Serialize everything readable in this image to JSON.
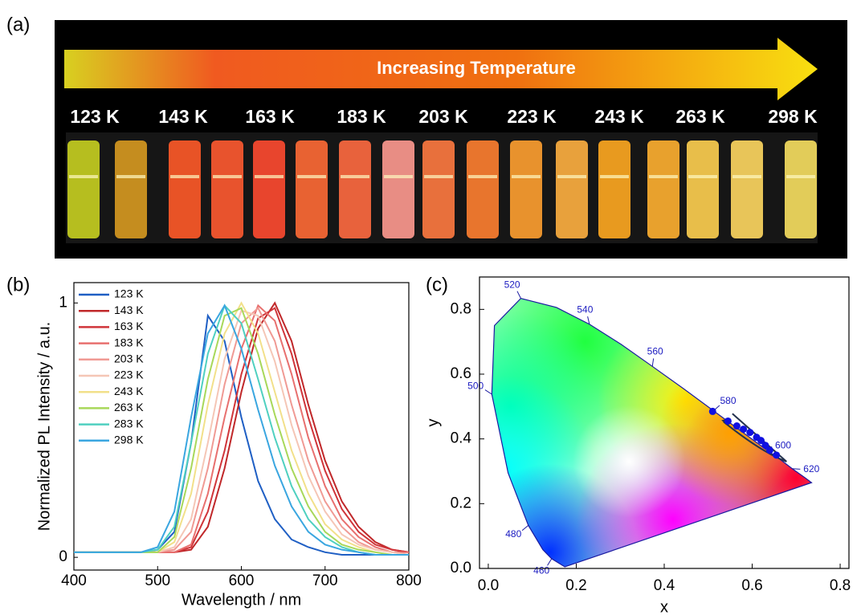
{
  "panel_labels": [
    "(a)",
    "(b)",
    "(c)"
  ],
  "photo_panel": {
    "arrow_text": "Increasing Temperature",
    "temperatures": [
      "123 K",
      "143 K",
      "163 K",
      "183 K",
      "203 K",
      "223 K",
      "243 K",
      "263 K",
      "298 K"
    ]
  },
  "chart_data": [
    {
      "type": "line",
      "xlabel": "Wavelength / nm",
      "ylabel": "Normalized PL Intensity / a.u.",
      "xlim": [
        400,
        800
      ],
      "ylim": [
        -0.05,
        1.08
      ],
      "xticks": [
        400,
        500,
        600,
        700,
        800
      ],
      "yticks": [
        0,
        1
      ],
      "legend": "upper-left",
      "x": [
        400,
        420,
        440,
        460,
        480,
        500,
        520,
        540,
        560,
        580,
        600,
        620,
        640,
        660,
        680,
        700,
        720,
        740,
        760,
        780,
        800
      ],
      "series": [
        {
          "name": "123 K",
          "color": "#1f5fc4",
          "values": [
            0.02,
            0.02,
            0.02,
            0.02,
            0.02,
            0.03,
            0.1,
            0.45,
            0.95,
            0.85,
            0.55,
            0.3,
            0.15,
            0.07,
            0.04,
            0.02,
            0.01,
            0.01,
            0.01,
            0.01,
            0.01
          ]
        },
        {
          "name": "143 K",
          "color": "#c0282a",
          "values": [
            0.02,
            0.02,
            0.02,
            0.02,
            0.02,
            0.02,
            0.02,
            0.03,
            0.12,
            0.35,
            0.65,
            0.9,
            1.0,
            0.85,
            0.6,
            0.38,
            0.22,
            0.12,
            0.06,
            0.03,
            0.02
          ]
        },
        {
          "name": "163 K",
          "color": "#d0353a",
          "values": [
            0.02,
            0.02,
            0.02,
            0.02,
            0.02,
            0.02,
            0.02,
            0.04,
            0.18,
            0.42,
            0.72,
            0.94,
            0.98,
            0.8,
            0.55,
            0.34,
            0.19,
            0.1,
            0.05,
            0.03,
            0.02
          ]
        },
        {
          "name": "183 K",
          "color": "#e8706f",
          "values": [
            0.02,
            0.02,
            0.02,
            0.02,
            0.02,
            0.02,
            0.02,
            0.05,
            0.25,
            0.55,
            0.82,
            0.99,
            0.93,
            0.72,
            0.47,
            0.28,
            0.15,
            0.08,
            0.04,
            0.02,
            0.02
          ]
        },
        {
          "name": "203 K",
          "color": "#f09a94",
          "values": [
            0.02,
            0.02,
            0.02,
            0.02,
            0.02,
            0.02,
            0.03,
            0.1,
            0.35,
            0.68,
            0.92,
            0.98,
            0.85,
            0.6,
            0.38,
            0.22,
            0.12,
            0.06,
            0.03,
            0.02,
            0.01
          ]
        },
        {
          "name": "223 K",
          "color": "#f5c6b6",
          "values": [
            0.02,
            0.02,
            0.02,
            0.02,
            0.02,
            0.02,
            0.04,
            0.15,
            0.45,
            0.78,
            0.97,
            0.95,
            0.77,
            0.52,
            0.32,
            0.18,
            0.09,
            0.05,
            0.03,
            0.02,
            0.01
          ]
        },
        {
          "name": "243 K",
          "color": "#f2e08a",
          "values": [
            0.02,
            0.02,
            0.02,
            0.02,
            0.02,
            0.02,
            0.06,
            0.25,
            0.6,
            0.88,
            1.0,
            0.88,
            0.65,
            0.42,
            0.25,
            0.13,
            0.07,
            0.04,
            0.02,
            0.01,
            0.01
          ]
        },
        {
          "name": "263 K",
          "color": "#a8d85a",
          "values": [
            0.02,
            0.02,
            0.02,
            0.02,
            0.02,
            0.02,
            0.08,
            0.35,
            0.7,
            0.95,
            0.98,
            0.8,
            0.56,
            0.35,
            0.2,
            0.1,
            0.05,
            0.03,
            0.02,
            0.01,
            0.01
          ]
        },
        {
          "name": "283 K",
          "color": "#4fd0c0",
          "values": [
            0.02,
            0.02,
            0.02,
            0.02,
            0.02,
            0.03,
            0.12,
            0.45,
            0.8,
            0.99,
            0.92,
            0.7,
            0.47,
            0.28,
            0.15,
            0.08,
            0.04,
            0.02,
            0.01,
            0.01,
            0.01
          ]
        },
        {
          "name": "298 K",
          "color": "#3aa6e0",
          "values": [
            0.02,
            0.02,
            0.02,
            0.02,
            0.02,
            0.04,
            0.18,
            0.55,
            0.88,
            0.99,
            0.82,
            0.58,
            0.36,
            0.2,
            0.1,
            0.05,
            0.03,
            0.02,
            0.01,
            0.01,
            0.01
          ]
        }
      ]
    },
    {
      "type": "scatter",
      "xlabel": "x",
      "ylabel": "y",
      "xlim": [
        -0.02,
        0.82
      ],
      "ylim": [
        0,
        0.9
      ],
      "xticks": [
        {
          "value": 0,
          "label": "0.0"
        },
        0.2,
        0.4,
        0.6,
        0.8
      ],
      "yticks": [
        {
          "value": 0,
          "label": "0.0"
        },
        0.2,
        0.4,
        0.6,
        0.8
      ],
      "color": "#1010e0",
      "x": [
        0.51,
        0.545,
        0.565,
        0.58,
        0.595,
        0.61,
        0.62,
        0.63,
        0.64,
        0.655
      ],
      "y": [
        0.485,
        0.455,
        0.44,
        0.43,
        0.42,
        0.405,
        0.395,
        0.38,
        0.365,
        0.35
      ],
      "locus": {
        "x": [
          0.174,
          0.144,
          0.124,
          0.091,
          0.045,
          0.008,
          0.014,
          0.074,
          0.155,
          0.23,
          0.302,
          0.373,
          0.444,
          0.512,
          0.575,
          0.627,
          0.666,
          0.691,
          0.719,
          0.735
        ],
        "y": [
          0.005,
          0.03,
          0.058,
          0.133,
          0.295,
          0.538,
          0.75,
          0.834,
          0.806,
          0.754,
          0.692,
          0.624,
          0.555,
          0.487,
          0.424,
          0.372,
          0.334,
          0.308,
          0.281,
          0.265
        ]
      },
      "wavelength_labels": [
        {
          "label": "460",
          "x": 0.144,
          "y": 0.03
        },
        {
          "label": "480",
          "x": 0.091,
          "y": 0.133
        },
        {
          "label": "500",
          "x": 0.008,
          "y": 0.538
        },
        {
          "label": "520",
          "x": 0.074,
          "y": 0.834
        },
        {
          "label": "540",
          "x": 0.23,
          "y": 0.754
        },
        {
          "label": "560",
          "x": 0.373,
          "y": 0.624
        },
        {
          "label": "580",
          "x": 0.512,
          "y": 0.487
        },
        {
          "label": "600",
          "x": 0.627,
          "y": 0.372
        },
        {
          "label": "620",
          "x": 0.691,
          "y": 0.308
        }
      ]
    }
  ]
}
